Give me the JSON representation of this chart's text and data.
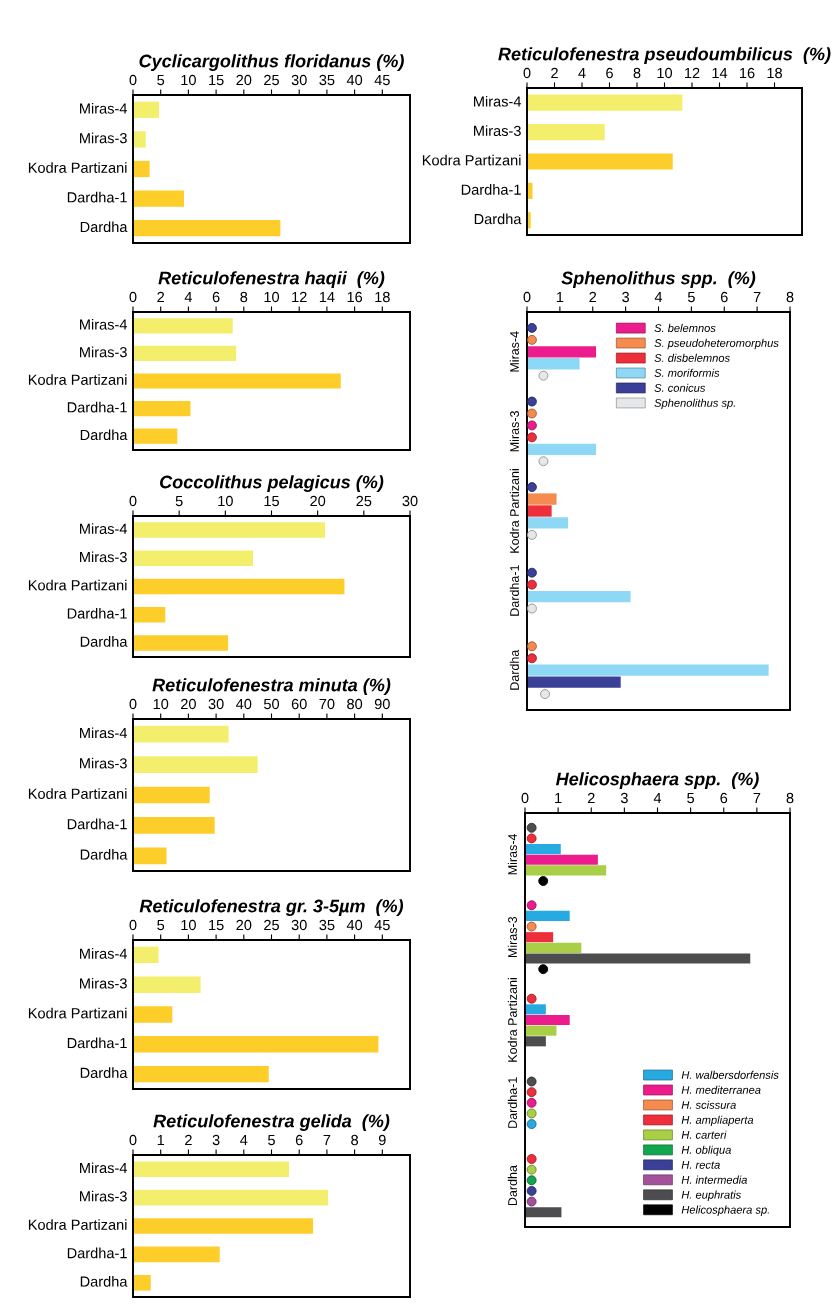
{
  "chart_data": [
    {
      "type": "bar",
      "orientation": "horizontal",
      "title": "Cyclicargolithus floridanus (%)",
      "categories": [
        "Miras-4",
        "Miras-3",
        "Kodra Partizani",
        "Dardha-1",
        "Dardha"
      ],
      "values": [
        4.7,
        2.3,
        3.0,
        9.2,
        26.6
      ],
      "colors": [
        "#f3ee6b",
        "#f3ee6b",
        "#fdcd2a",
        "#fdcd2a",
        "#fdcd2a"
      ],
      "xlim": [
        0,
        50
      ],
      "xticks": [
        0,
        5,
        10,
        15,
        20,
        25,
        30,
        35,
        40,
        45
      ],
      "grid": false,
      "legend": false
    },
    {
      "type": "bar",
      "orientation": "horizontal",
      "title": "Reticulofenestra haqii  (%)",
      "categories": [
        "Miras-4",
        "Miras-3",
        "Kodra Partizani",
        "Dardha-1",
        "Dardha"
      ],
      "values": [
        7.2,
        7.45,
        15.0,
        4.15,
        3.2
      ],
      "colors": [
        "#f3ee6b",
        "#f3ee6b",
        "#fdcd2a",
        "#fdcd2a",
        "#fdcd2a"
      ],
      "xlim": [
        0,
        20
      ],
      "xticks": [
        0,
        2,
        4,
        6,
        8,
        10,
        12,
        14,
        16,
        18
      ],
      "grid": false,
      "legend": false
    },
    {
      "type": "bar",
      "orientation": "horizontal",
      "title": "Coccolithus pelagicus (%)",
      "categories": [
        "Miras-4",
        "Miras-3",
        "Kodra Partizani",
        "Dardha-1",
        "Dardha"
      ],
      "values": [
        20.8,
        13.0,
        22.9,
        3.5,
        10.3
      ],
      "colors": [
        "#f3ee6b",
        "#f3ee6b",
        "#fdcd2a",
        "#fdcd2a",
        "#fdcd2a"
      ],
      "xlim": [
        0,
        30
      ],
      "xticks": [
        0,
        5,
        10,
        15,
        20,
        25,
        30
      ],
      "grid": false,
      "legend": false
    },
    {
      "type": "bar",
      "orientation": "horizontal",
      "title": "Reticulofenestra minuta (%)",
      "categories": [
        "Miras-4",
        "Miras-3",
        "Kodra Partizani",
        "Dardha-1",
        "Dardha"
      ],
      "values": [
        34.5,
        45,
        27.7,
        29.5,
        12.1
      ],
      "colors": [
        "#f3ee6b",
        "#f3ee6b",
        "#fdcd2a",
        "#fdcd2a",
        "#fdcd2a"
      ],
      "xlim": [
        0,
        100
      ],
      "xticks": [
        0,
        10,
        20,
        30,
        40,
        50,
        60,
        70,
        80,
        90
      ],
      "grid": false,
      "legend": false
    },
    {
      "type": "bar",
      "orientation": "horizontal",
      "title": "Reticulofenestra gr. 3-5µm  (%)",
      "categories": [
        "Miras-4",
        "Miras-3",
        "Kodra Partizani",
        "Dardha-1",
        "Dardha"
      ],
      "values": [
        4.6,
        12.2,
        7.1,
        44.3,
        24.5
      ],
      "colors": [
        "#f3ee6b",
        "#f3ee6b",
        "#fdcd2a",
        "#fdcd2a",
        "#fdcd2a"
      ],
      "xlim": [
        0,
        50
      ],
      "xticks": [
        0,
        5,
        10,
        15,
        20,
        25,
        30,
        35,
        40,
        45
      ],
      "grid": false,
      "legend": false
    },
    {
      "type": "bar",
      "orientation": "horizontal",
      "title": "Reticulofenestra gelida  (%)",
      "categories": [
        "Miras-4",
        "Miras-3",
        "Kodra Partizani",
        "Dardha-1",
        "Dardha"
      ],
      "values": [
        5.63,
        7.04,
        6.5,
        3.13,
        0.64
      ],
      "colors": [
        "#f3ee6b",
        "#f3ee6b",
        "#fdcd2a",
        "#fdcd2a",
        "#fdcd2a"
      ],
      "xlim": [
        0,
        10
      ],
      "xticks": [
        0,
        1,
        2,
        3,
        4,
        5,
        6,
        7,
        8,
        9
      ],
      "grid": false,
      "legend": false
    },
    {
      "type": "bar",
      "orientation": "horizontal",
      "title": "Reticulofenestra pseudoumbilicus  (%)",
      "categories": [
        "Miras-4",
        "Miras-3",
        "Kodra Partizani",
        "Dardha-1",
        "Dardha"
      ],
      "values": [
        11.3,
        5.65,
        10.6,
        0.4,
        0.27
      ],
      "colors": [
        "#f3ee6b",
        "#f3ee6b",
        "#fdcd2a",
        "#fdcd2a",
        "#fdcd2a"
      ],
      "xlim": [
        0,
        20
      ],
      "xticks": [
        0,
        2,
        4,
        6,
        8,
        10,
        12,
        14,
        16,
        18
      ],
      "grid": false,
      "legend": false
    },
    {
      "type": "bar",
      "orientation": "horizontal",
      "title": "Sphenolithus spp.  (%)",
      "categories": [
        "Miras-4",
        "Miras-3",
        "Kodra Partizani",
        "Dardha-1",
        "Dardha"
      ],
      "xlim": [
        0,
        8
      ],
      "xticks": [
        0,
        1,
        2,
        3,
        4,
        5,
        6,
        7,
        8
      ],
      "grid": false,
      "legend": "top right",
      "marker": "circle",
      "series": [
        {
          "type": "scatter",
          "color": "#3a3f98",
          "values": [
            0.15,
            0.15,
            0.15,
            0.15,
            null
          ]
        },
        {
          "type": "scatter",
          "color": "#f68b4f",
          "values": [
            0.15,
            0.15,
            null,
            null,
            0.15
          ]
        },
        {
          "type": "scatter",
          "color": "#ec1c8c",
          "values": [
            null,
            0.15,
            null,
            null,
            null
          ]
        },
        {
          "type": "scatter",
          "color": "#ee2e3b",
          "values": [
            null,
            0.15,
            null,
            0.15,
            0.15
          ]
        },
        {
          "type": "bar",
          "name": "S. belemnos",
          "color": "#ec1c8c",
          "values": [
            2.1,
            null,
            null,
            null,
            null
          ]
        },
        {
          "type": "bar",
          "name": "S. pseudoheteromorphus",
          "color": "#f68b4f",
          "values": [
            null,
            null,
            0.9,
            null,
            null
          ]
        },
        {
          "type": "bar",
          "name": "S. disbelemnos",
          "color": "#ee2e3b",
          "values": [
            null,
            null,
            0.75,
            null,
            null
          ]
        },
        {
          "type": "bar",
          "name": "S. moriformis",
          "color": "#8ed8f5",
          "values": [
            1.6,
            2.1,
            1.25,
            3.15,
            7.35
          ]
        },
        {
          "type": "bar",
          "name": "S. conicus",
          "color": "#3a3f98",
          "values": [
            null,
            null,
            null,
            null,
            2.85
          ]
        },
        {
          "type": "scatter",
          "name": "Sphenolithus sp.",
          "color": "#e6e7e8",
          "values": [
            0.5,
            0.5,
            0.15,
            0.15,
            0.55
          ]
        }
      ]
    },
    {
      "type": "bar",
      "orientation": "horizontal",
      "title": "Helicosphaera spp.  (%)",
      "categories": [
        "Miras-4",
        "Miras-3",
        "Kodra Partizani",
        "Dardha-1",
        "Dardha"
      ],
      "xlim": [
        0,
        8
      ],
      "xticks": [
        0,
        1,
        2,
        3,
        4,
        5,
        6,
        7,
        8
      ],
      "grid": false,
      "legend": "bottom right",
      "marker": "circle",
      "series": [
        {
          "type": "scatter",
          "color": "#4d4d4f",
          "values": [
            0.2,
            null,
            null,
            0.2,
            null
          ]
        },
        {
          "type": "scatter",
          "color": "#ee2e3b",
          "values": [
            0.2,
            null,
            0.2,
            0.2,
            0.2
          ]
        },
        {
          "type": "scatter",
          "color": "#ec1c8c",
          "values": [
            null,
            0.2,
            null,
            0.2,
            null
          ]
        },
        {
          "type": "scatter",
          "color": "#a8cf45",
          "values": [
            null,
            null,
            null,
            0.2,
            0.2
          ]
        },
        {
          "type": "scatter",
          "color": "#27aae1",
          "values": [
            null,
            null,
            null,
            0.2,
            null
          ]
        },
        {
          "type": "bar",
          "name": "H. walbersdorfensis",
          "color": "#27aae1",
          "values": [
            1.08,
            1.35,
            0.63,
            null,
            null
          ]
        },
        {
          "type": "bar",
          "name": "H. mediterranea",
          "color": "#ec1c8c",
          "values": [
            2.2,
            null,
            1.35,
            null,
            null
          ]
        },
        {
          "type": "scatter",
          "name": "H. scissura",
          "color": "#f68b4f",
          "values": [
            null,
            0.2,
            null,
            null,
            null
          ]
        },
        {
          "type": "bar",
          "name": "H. ampliaperta",
          "color": "#ee2e3b",
          "values": [
            null,
            0.85,
            null,
            null,
            null
          ]
        },
        {
          "type": "bar",
          "name": "H. carteri",
          "color": "#a8cf45",
          "values": [
            2.45,
            1.7,
            0.95,
            null,
            null
          ]
        },
        {
          "type": "scatter",
          "name": "H. obliqua",
          "color": "#13a651",
          "values": [
            null,
            null,
            null,
            null,
            0.2
          ]
        },
        {
          "type": "scatter",
          "name": "H. recta",
          "color": "#3a3f98",
          "values": [
            null,
            null,
            null,
            null,
            0.2
          ]
        },
        {
          "type": "scatter",
          "name": "H. intermedia",
          "color": "#a4519c",
          "values": [
            null,
            null,
            null,
            null,
            0.2
          ]
        },
        {
          "type": "bar",
          "name": "H. euphratis",
          "color": "#4d4d4f",
          "values": [
            null,
            6.8,
            0.63,
            null,
            1.1
          ]
        },
        {
          "type": "scatter",
          "name": "Helicosphaera sp.",
          "color": "#000000",
          "values": [
            0.55,
            0.55,
            null,
            null,
            null
          ]
        }
      ]
    }
  ]
}
